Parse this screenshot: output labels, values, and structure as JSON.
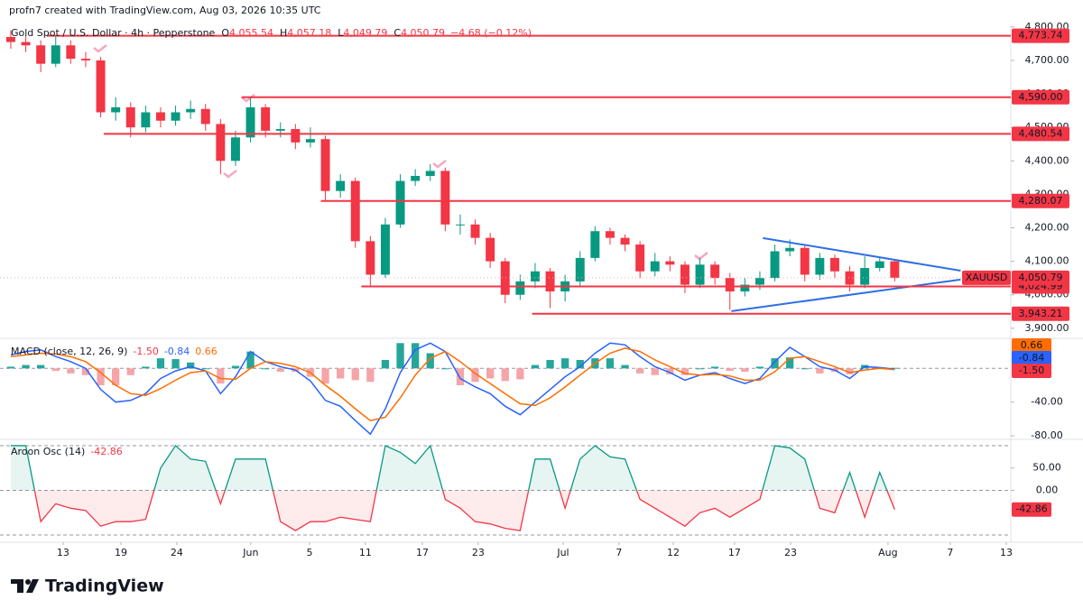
{
  "header": {
    "credit": "profn7 created with TradingView.com, Aug 03, 2026 10:35 UTC",
    "symbol": "Gold Spot / U.S. Dollar · 4h · Pepperstone",
    "ohlc": [
      {
        "key": "O",
        "value": "4,055.54"
      },
      {
        "key": "H",
        "value": "4,057.18"
      },
      {
        "key": "L",
        "value": "4,049.79"
      },
      {
        "key": "C",
        "value": "4,050.79"
      }
    ],
    "change": "−4.68 (−0.12%)"
  },
  "brand": "TradingView",
  "chart_data": [
    {
      "type": "candlestick",
      "symbol": "XAUUSD",
      "last_label": "4,050.79",
      "up_color": "#089981",
      "down_color": "#f23645",
      "xlim": [
        -0.72,
        66.75
      ],
      "xticks": [
        {
          "value": 3.49,
          "label": "13"
        },
        {
          "value": 7.35,
          "label": "19"
        },
        {
          "value": 11.08,
          "label": "24"
        },
        {
          "value": 16.02,
          "label": "Jun"
        },
        {
          "value": 19.94,
          "label": "5"
        },
        {
          "value": 23.67,
          "label": "11"
        },
        {
          "value": 27.47,
          "label": "17"
        },
        {
          "value": 31.2,
          "label": "23"
        },
        {
          "value": 36.87,
          "label": "Jul"
        },
        {
          "value": 40.6,
          "label": "7"
        },
        {
          "value": 44.22,
          "label": "12"
        },
        {
          "value": 48.31,
          "label": "17"
        },
        {
          "value": 52.05,
          "label": "23"
        },
        {
          "value": 58.55,
          "label": "Aug"
        },
        {
          "value": 62.71,
          "label": "7"
        },
        {
          "value": 66.45,
          "label": "13"
        }
      ],
      "ylim": [
        3878,
        4805
      ],
      "yticks": [
        {
          "value": 3900,
          "label": "3,900.00"
        },
        {
          "value": 4000,
          "label": "4,000.00"
        },
        {
          "value": 4100,
          "label": "4,100.00"
        },
        {
          "value": 4200,
          "label": "4,200.00"
        },
        {
          "value": 4300,
          "label": "4,300.00"
        },
        {
          "value": 4400,
          "label": "4,400.00"
        },
        {
          "value": 4500,
          "label": "4,500.00"
        },
        {
          "value": 4600,
          "label": "4,600.00"
        },
        {
          "value": 4700,
          "label": "4,700.00"
        },
        {
          "value": 4800,
          "label": "4,800.00"
        }
      ],
      "open": [
        4770,
        4755,
        4745,
        4690,
        4745,
        4705,
        4700,
        4545,
        4560,
        4500,
        4545,
        4520,
        4545,
        4555,
        4510,
        4400,
        4470,
        4560,
        4490,
        4495,
        4455,
        4465,
        4310,
        4340,
        4160,
        4060,
        4210,
        4340,
        4355,
        4370,
        4210,
        4210,
        4170,
        4100,
        4000,
        4040,
        4070,
        4010,
        4040,
        4110,
        4190,
        4170,
        4150,
        4070,
        4100,
        4090,
        4030,
        4090,
        4050,
        4010,
        4030,
        4050,
        4130,
        4140,
        4060,
        4110,
        4070,
        4030,
        4080,
        4100
      ],
      "high": [
        4790,
        4775,
        4760,
        4773,
        4760,
        4725,
        4710,
        4590,
        4575,
        4565,
        4560,
        4565,
        4580,
        4570,
        4525,
        4490,
        4590,
        4570,
        4515,
        4510,
        4500,
        4475,
        4360,
        4350,
        4175,
        4230,
        4360,
        4375,
        4390,
        4380,
        4240,
        4225,
        4185,
        4110,
        4060,
        4095,
        4080,
        4060,
        4130,
        4205,
        4200,
        4180,
        4160,
        4125,
        4115,
        4100,
        4110,
        4100,
        4065,
        4050,
        4070,
        4150,
        4165,
        4150,
        4125,
        4120,
        4085,
        4115,
        4110,
        4105
      ],
      "low": [
        4735,
        4725,
        4665,
        4680,
        4690,
        4680,
        4530,
        4520,
        4470,
        4485,
        4500,
        4505,
        4525,
        4490,
        4360,
        4385,
        4455,
        4470,
        4470,
        4435,
        4440,
        4280,
        4290,
        4140,
        4025,
        4050,
        4200,
        4325,
        4340,
        4190,
        4180,
        4150,
        4080,
        3975,
        3985,
        4020,
        3960,
        3980,
        4025,
        4100,
        4150,
        4130,
        4050,
        4055,
        4070,
        4005,
        4020,
        4030,
        3955,
        3995,
        4015,
        4040,
        4115,
        4040,
        4045,
        4050,
        4010,
        4020,
        4070,
        4040
      ],
      "close": [
        4755,
        4745,
        4690,
        4745,
        4705,
        4700,
        4545,
        4560,
        4500,
        4545,
        4520,
        4545,
        4555,
        4510,
        4400,
        4470,
        4560,
        4490,
        4495,
        4455,
        4465,
        4310,
        4340,
        4160,
        4060,
        4210,
        4340,
        4355,
        4370,
        4210,
        4210,
        4170,
        4100,
        4000,
        4040,
        4070,
        4010,
        4040,
        4110,
        4190,
        4170,
        4150,
        4070,
        4100,
        4090,
        4030,
        4090,
        4050,
        4010,
        4030,
        4050,
        4130,
        4140,
        4060,
        4110,
        4070,
        4030,
        4080,
        4100,
        4050.79
      ],
      "level_color": "#f23645",
      "levels": [
        {
          "value": 4773.74,
          "label": "4,773.74",
          "from": 2.4
        },
        {
          "value": 4590.0,
          "label": "4,590.00",
          "from": 15.4
        },
        {
          "value": 4480.54,
          "label": "4,480.54",
          "from": 6.2
        },
        {
          "value": 4280.07,
          "label": "4,280.07",
          "from": 20.7
        },
        {
          "value": 4024.99,
          "label": "4,024.99",
          "from": 23.4
        },
        {
          "value": 3943.21,
          "label": "3,943.21",
          "from": 34.8
        }
      ],
      "trend_color": "#2f6fe4",
      "trendlines": [
        {
          "x": [
            50.2,
            63.4
          ],
          "y": [
            4169.5,
            4072
          ]
        },
        {
          "x": [
            48.1,
            63.4
          ],
          "y": [
            3951,
            4045.5
          ]
        }
      ]
    },
    {
      "type": "macd",
      "title": "MACD (close, 12, 26, 9)",
      "ylim": [
        -83.2,
        34.6
      ],
      "yticks": [
        {
          "value": -40,
          "label": "-40.00"
        },
        {
          "value": -80,
          "label": "-80.00"
        }
      ],
      "hlines": [
        0
      ],
      "series": [
        {
          "color": "#2962ff",
          "label_color": "#2962ff",
          "last_label": "-0.84",
          "values": [
            16,
            20,
            22,
            14,
            8,
            0,
            -25,
            -40,
            -38,
            -30,
            -12,
            -3,
            2,
            -3,
            -30,
            -10,
            20,
            8,
            2,
            -2,
            -15,
            -38,
            -45,
            -62,
            -78,
            -48,
            -5,
            22,
            30,
            20,
            -12,
            -22,
            -30,
            -45,
            -55,
            -40,
            -25,
            -10,
            2,
            18,
            30,
            28,
            14,
            2,
            -5,
            -14,
            -8,
            -5,
            -12,
            -18,
            -12,
            8,
            25,
            14,
            2,
            -2,
            -12,
            2,
            1,
            -0.84
          ]
        },
        {
          "color": "#ff6d00",
          "label_color": "#f23645",
          "last_label": "-1.50",
          "values": [
            14,
            16,
            18,
            17,
            14,
            8,
            -5,
            -20,
            -30,
            -32,
            -24,
            -14,
            -5,
            -3,
            -12,
            -13,
            0,
            8,
            6,
            2,
            -5,
            -20,
            -33,
            -48,
            -62,
            -58,
            -35,
            -8,
            12,
            20,
            8,
            -6,
            -18,
            -30,
            -42,
            -44,
            -35,
            -22,
            -8,
            6,
            18,
            24,
            20,
            10,
            2,
            -6,
            -8,
            -7,
            -9,
            -14,
            -14,
            -4,
            12,
            14,
            8,
            2,
            -5,
            -2,
            0,
            -1.5
          ]
        },
        {
          "type": "histogram",
          "colors": [
            "#26a69a",
            "#f5a5a8"
          ],
          "label_color": "#ff6d00",
          "last_label": "0.66",
          "values": [
            2,
            4,
            4,
            -3,
            -6,
            -8,
            -20,
            -20,
            -8,
            2,
            12,
            11,
            7,
            0,
            -18,
            3,
            20,
            0,
            -4,
            -4,
            -10,
            -18,
            -12,
            -14,
            -16,
            10,
            30,
            30,
            18,
            0,
            -20,
            -16,
            -12,
            -15,
            -13,
            4,
            10,
            12,
            10,
            12,
            12,
            4,
            -6,
            -8,
            -7,
            -8,
            0,
            2,
            -3,
            -4,
            2,
            12,
            13,
            0,
            -6,
            -4,
            -7,
            4,
            1,
            0.66
          ]
        }
      ]
    },
    {
      "type": "oscillator",
      "title": "Aroon Osc (14)",
      "last_label": "-42.86",
      "ylim": [
        -114,
        112
      ],
      "yticks": [
        {
          "value": 50,
          "label": "50.00"
        },
        {
          "value": 0,
          "label": "0.00"
        }
      ],
      "hlines": [
        100,
        0,
        -100
      ],
      "colors": [
        "#089981",
        "#f23645"
      ],
      "values": [
        100,
        100,
        -70,
        -30,
        -40,
        -45,
        -80,
        -70,
        -70,
        -65,
        50,
        100,
        70,
        65,
        -30,
        70,
        70,
        70,
        -70,
        -90,
        -70,
        -70,
        -60,
        -65,
        -70,
        100,
        85,
        60,
        100,
        -20,
        -40,
        -70,
        -75,
        -85,
        -90,
        70,
        70,
        -40,
        70,
        100,
        75,
        70,
        -20,
        -40,
        -60,
        -80,
        -50,
        -40,
        -60,
        -40,
        -20,
        100,
        95,
        70,
        -40,
        -50,
        40,
        -60,
        40,
        -42.86
      ]
    }
  ]
}
